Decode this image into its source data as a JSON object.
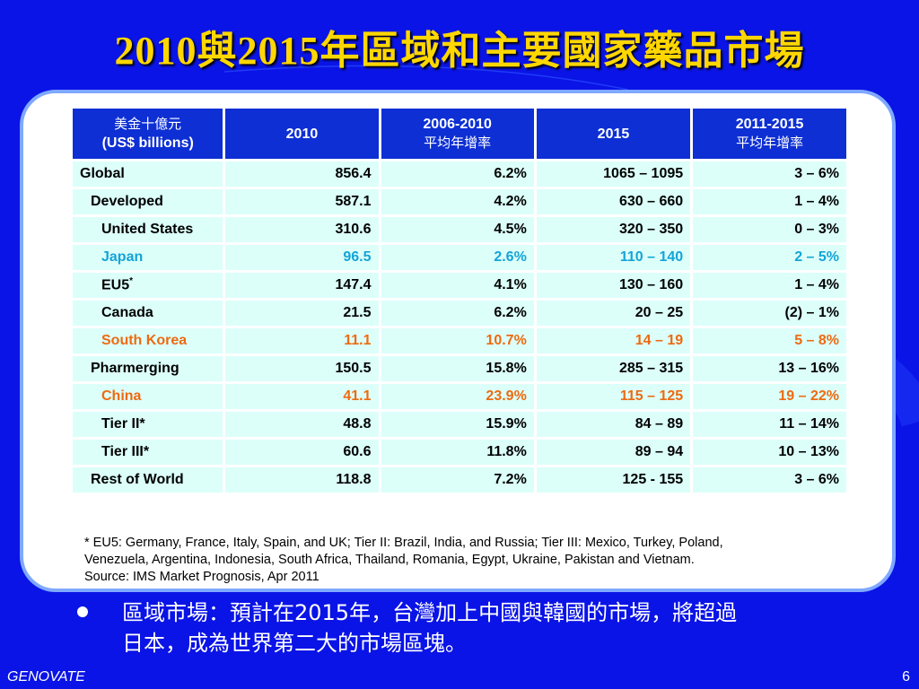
{
  "title": "2010與2015年區域和主要國家藥品市場",
  "table": {
    "headers": [
      {
        "line1": "美金十億元",
        "line2": "(US$ billions)"
      },
      {
        "line1": "2010",
        "line2": ""
      },
      {
        "line1": "2006-2010",
        "line2": "平均年增率"
      },
      {
        "line1": "2015",
        "line2": ""
      },
      {
        "line1": "2011-2015",
        "line2": "平均年增率"
      }
    ],
    "rows": [
      {
        "label": "Global",
        "sup": "",
        "v2010": "856.4",
        "g0610": "6.2%",
        "v2015": "1065 – 1095",
        "g1115": "3 – 6%"
      },
      {
        "label": "Developed",
        "sup": "",
        "v2010": "587.1",
        "g0610": "4.2%",
        "v2015": "630 – 660",
        "g1115": "1 – 4%"
      },
      {
        "label": "United States",
        "sup": "",
        "v2010": "310.6",
        "g0610": "4.5%",
        "v2015": "320 – 350",
        "g1115": "0 – 3%"
      },
      {
        "label": "Japan",
        "sup": "",
        "v2010": "96.5",
        "g0610": "2.6%",
        "v2015": "110 – 140",
        "g1115": "2 – 5%"
      },
      {
        "label": "EU5",
        "sup": "*",
        "v2010": "147.4",
        "g0610": "4.1%",
        "v2015": "130 – 160",
        "g1115": "1 – 4%"
      },
      {
        "label": "Canada",
        "sup": "",
        "v2010": "21.5",
        "g0610": "6.2%",
        "v2015": "20 – 25",
        "g1115": "(2) – 1%"
      },
      {
        "label": "South Korea",
        "sup": "",
        "v2010": "11.1",
        "g0610": "10.7%",
        "v2015": "14 – 19",
        "g1115": "5 – 8%"
      },
      {
        "label": "Pharmerging",
        "sup": "",
        "v2010": "150.5",
        "g0610": "15.8%",
        "v2015": "285 – 315",
        "g1115": "13 – 16%"
      },
      {
        "label": "China",
        "sup": "",
        "v2010": "41.1",
        "g0610": "23.9%",
        "v2015": "115 – 125",
        "g1115": "19 – 22%"
      },
      {
        "label": "Tier II*",
        "sup": "",
        "v2010": "48.8",
        "g0610": "15.9%",
        "v2015": "84 – 89",
        "g1115": "11 – 14%"
      },
      {
        "label": "Tier III*",
        "sup": "",
        "v2010": "60.6",
        "g0610": "11.8%",
        "v2015": "89 – 94",
        "g1115": "10 – 13%"
      },
      {
        "label": "Rest of World",
        "sup": "",
        "v2010": "118.8",
        "g0610": "7.2%",
        "v2015": "125 - 155",
        "g1115": "3 – 6%"
      }
    ]
  },
  "footnote": {
    "line1": "* EU5: Germany, France, Italy, Spain, and UK; Tier II: Brazil, India, and Russia; Tier III: Mexico, Turkey, Poland,",
    "line2": "Venezuela, Argentina, Indonesia, South Africa, Thailand, Romania, Egypt, Ukraine, Pakistan and Vietnam.",
    "line3": "Source: IMS Market Prognosis, Apr 2011"
  },
  "bullet": {
    "line1": "區域市場：預計在2015年，台灣加上中國與韓國的市場，將超過",
    "line2": "日本，成為世界第二大的市場區塊。"
  },
  "footer": {
    "brand": "GENOVATE",
    "page": "6"
  },
  "colors": {
    "background": "#0a14e6",
    "title": "#ffd700",
    "header_cell": "#0d2fd4",
    "body_cell": "#dcfffa",
    "highlight_cyan": "#14a4d8",
    "highlight_orange": "#ee6a10"
  }
}
